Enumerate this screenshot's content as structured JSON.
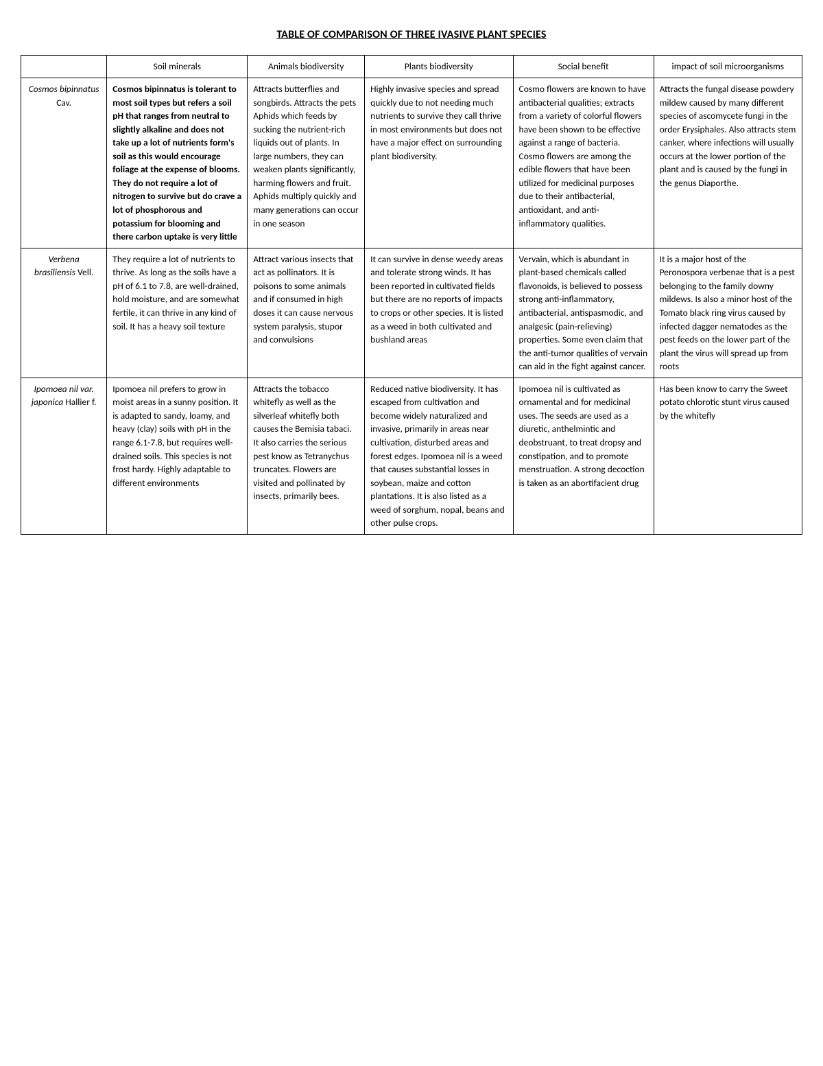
{
  "title": "TABLE OF COMPARISON OF THREE IVASIVE PLANT SPECIES",
  "columns": [
    "",
    "Soil minerals",
    "Animals biodiversity",
    "Plants biodiversity",
    "Social benefit",
    "impact of soil microorganisms"
  ],
  "rows": [
    {
      "species_italic": "Cosmos bipinnatus",
      "species_auth": "Cav.",
      "soil_bold": "Cosmos bipinnatus is tolerant to most soil types but refers a soil pH that ranges from neutral to slightly alkaline and does not take up a lot of nutrients form's soil as this would encourage foliage at the expense of blooms. They do not require a lot of nitrogen to survive but do crave a lot of phosphorous and potassium for blooming and there carbon uptake is very little",
      "animals": "Attracts butterflies and songbirds. Attracts the pets Aphids which feeds by sucking the nutrient-rich liquids out of plants. In large numbers, they can weaken plants significantly, harming flowers and fruit. Aphids multiply quickly and many generations can occur in one season",
      "plants": "Highly invasive species and spread quickly due to not needing much nutrients to survive they call thrive in most environments but does not have a major effect on surrounding plant biodiversity.",
      "social": "Cosmo flowers are known to have antibacterial qualities; extracts from a variety of colorful flowers have been shown to be effective against a range of bacteria. Cosmo flowers are among the edible flowers that have been utilized for medicinal purposes due to their antibacterial, antioxidant, and anti-inflammatory qualities.",
      "micro": "Attracts the fungal disease powdery mildew caused by many different species of ascomycete fungi in the order Erysiphales. Also attracts stem canker, where infections will usually occurs at the lower portion of the plant and is caused by the fungi in the genus Diaporthe."
    },
    {
      "species_italic": "Verbena brasiliensis",
      "species_auth": "Vell.",
      "soil": "They require a lot of nutrients to thrive. As long as the soils have a pH of 6.1 to 7.8, are well-drained, hold moisture, and are somewhat fertile, it can thrive in any kind of soil. It has a heavy soil texture",
      "animals": "Attract various insects that act as pollinators. It is poisons to some animals and if consumed in high doses it can cause nervous system paralysis, stupor and convulsions",
      "plants": "It can survive in dense weedy areas and tolerate strong winds. It has been reported in cultivated fields but there are no reports of impacts to crops or other species. It is listed as a weed in both cultivated and bushland areas",
      "social": "Vervain, which is abundant in plant-based chemicals called flavonoids, is believed to possess strong anti-inflammatory, antibacterial, antispasmodic, and analgesic (pain-relieving) properties. Some even claim that the anti-tumor qualities of vervain can aid in the fight against cancer.",
      "micro": "It is a major host of the Peronospora verbenae that is a pest belonging to the family downy mildews. Is also a minor host of the Tomato black ring virus caused by infected dagger nematodes as the pest feeds on the lower part of the plant the virus will spread up from roots"
    },
    {
      "species_italic": "Ipomoea nil var. japonica",
      "species_auth": "Hallier f.",
      "soil": "Ipomoea nil prefers to grow in moist areas in a sunny position. It is adapted to sandy, loamy, and heavy (clay) soils with pH in the range 6.1-7.8, but requires well-drained soils. This species is not frost hardy. Highly adaptable to different environments",
      "animals": "Attracts the tobacco whitefly as well as the silverleaf whitefly both causes the Bemisia tabaci. It also carries the serious pest know as Tetranychus truncates. Flowers are visited and pollinated by insects, primarily bees.",
      "plants": "Reduced native biodiversity. It has escaped from cultivation and become widely naturalized and invasive, primarily in areas near cultivation, disturbed areas and forest edges. Ipomoea nil is a weed that causes substantial losses in soybean, maize and cotton plantations. It is also listed as a weed of sorghum, nopal, beans and other pulse crops.",
      "social": "Ipomoea nil is cultivated as ornamental and for medicinal uses. The seeds are used as a diuretic, anthelmintic and deobstruant, to treat dropsy and constipation, and to promote menstruation. A strong decoction is taken as an abortifacient drug",
      "micro": "Has been know to carry the Sweet potato chlorotic stunt virus caused by the whitefly"
    }
  ]
}
